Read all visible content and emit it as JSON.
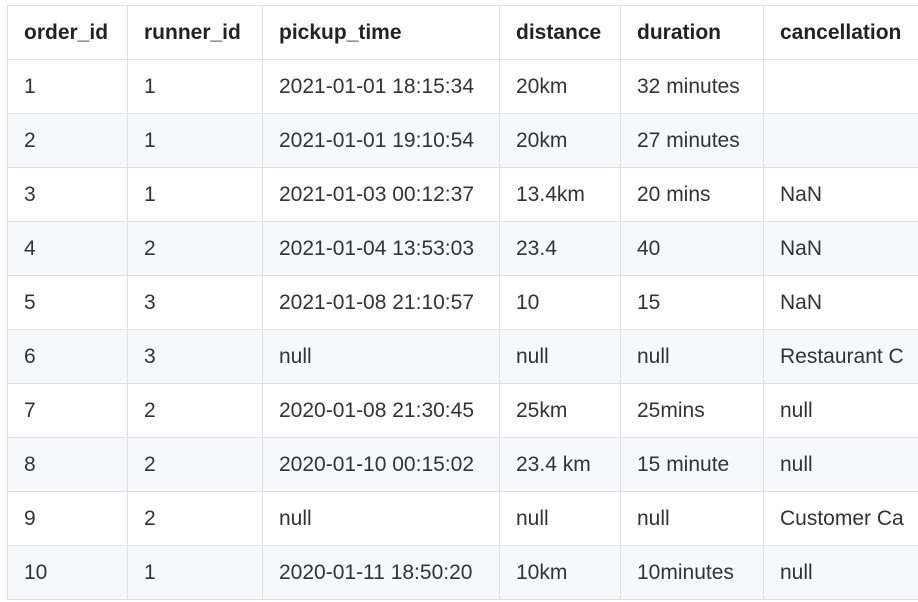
{
  "table": {
    "columns": [
      "order_id",
      "runner_id",
      "pickup_time",
      "distance",
      "duration",
      "cancellation"
    ],
    "rows": [
      [
        "1",
        "1",
        "2021-01-01 18:15:34",
        "20km",
        "32 minutes",
        ""
      ],
      [
        "2",
        "1",
        "2021-01-01 19:10:54",
        "20km",
        "27 minutes",
        ""
      ],
      [
        "3",
        "1",
        "2021-01-03 00:12:37",
        "13.4km",
        "20 mins",
        "NaN"
      ],
      [
        "4",
        "2",
        "2021-01-04 13:53:03",
        "23.4",
        "40",
        "NaN"
      ],
      [
        "5",
        "3",
        "2021-01-08 21:10:57",
        "10",
        "15",
        "NaN"
      ],
      [
        "6",
        "3",
        "null",
        "null",
        "null",
        "Restaurant C"
      ],
      [
        "7",
        "2",
        "2020-01-08 21:30:45",
        "25km",
        "25mins",
        "null"
      ],
      [
        "8",
        "2",
        "2020-01-10 00:15:02",
        "23.4 km",
        "15 minute",
        "null"
      ],
      [
        "9",
        "2",
        "null",
        "null",
        "null",
        "Customer Ca"
      ],
      [
        "10",
        "1",
        "2020-01-11 18:50:20",
        "10km",
        "10minutes",
        "null"
      ]
    ]
  },
  "colors": {
    "border": "#dfe2e5",
    "stripe": "#f6f8fa",
    "header_text": "#1f2328",
    "cell_text": "#333333"
  }
}
